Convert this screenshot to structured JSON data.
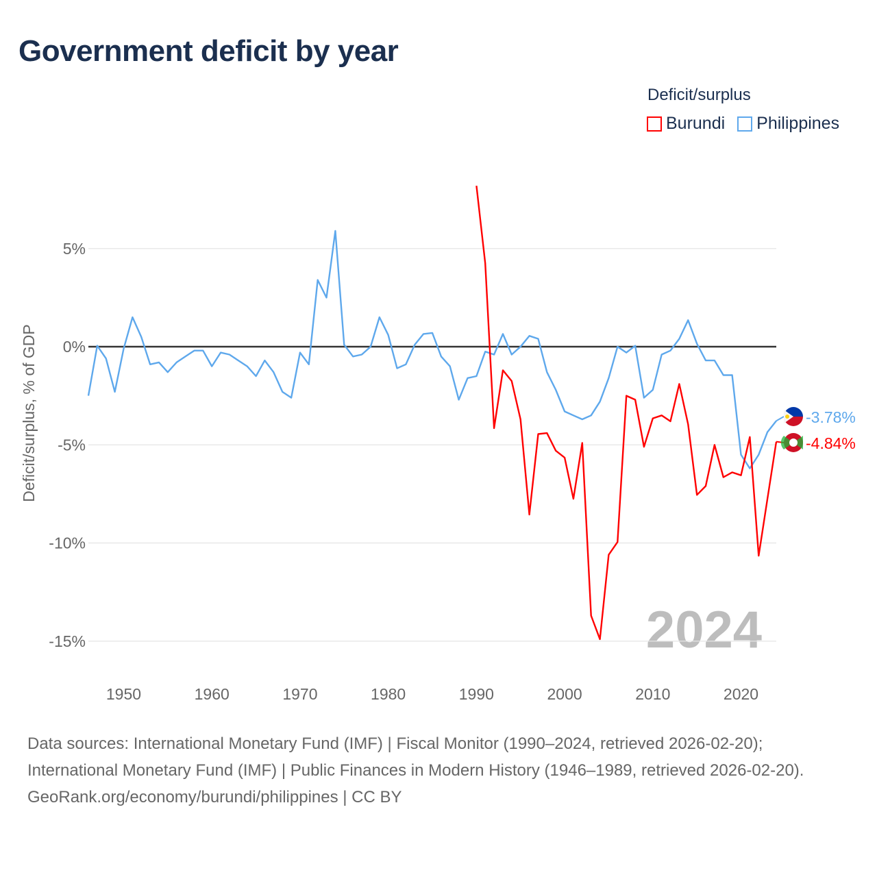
{
  "title": "Government deficit by year",
  "legend": {
    "title": "Deficit/surplus",
    "items": [
      {
        "label": "Burundi",
        "color": "#ff0000"
      },
      {
        "label": "Philippines",
        "color": "#5ea8ec"
      }
    ]
  },
  "footer": {
    "sources": "Data sources: International Monetary Fund (IMF) | Fiscal Monitor (1990–2024, retrieved 2026-02-20); International Monetary Fund (IMF) | Public Finances in Modern History (1946–1989, retrieved 2026-02-20).",
    "credit": "GeoRank.org/economy/burundi/philippines | CC BY"
  },
  "chart_data": {
    "type": "line",
    "title": "Government deficit by year",
    "ylabel": "Deficit/surplus, % of GDP",
    "xlabel": "",
    "xlim": [
      1946,
      2024
    ],
    "ylim": [
      -16.5,
      8.5
    ],
    "x_ticks": [
      1950,
      1960,
      1970,
      1980,
      1990,
      2000,
      2010,
      2020
    ],
    "y_ticks": [
      {
        "value": 5,
        "label": "5%"
      },
      {
        "value": 0,
        "label": "0%"
      },
      {
        "value": -5,
        "label": "-5%"
      },
      {
        "value": -10,
        "label": "-10%"
      },
      {
        "value": -15,
        "label": "-15%"
      }
    ],
    "year_watermark": "2024",
    "series": [
      {
        "name": "Philippines",
        "color": "#5ea8ec",
        "start_year": 1946,
        "end_label": "-3.78%",
        "values": [
          -2.5,
          0.05,
          -0.6,
          -2.3,
          -0.1,
          1.5,
          0.5,
          -0.9,
          -0.8,
          -1.3,
          -0.8,
          -0.5,
          -0.2,
          -0.2,
          -1.0,
          -0.3,
          -0.4,
          -0.7,
          -1.0,
          -1.5,
          -0.7,
          -1.3,
          -2.3,
          -2.6,
          -0.3,
          -0.9,
          3.4,
          2.5,
          5.9,
          0.1,
          -0.5,
          -0.4,
          0.0,
          1.5,
          0.6,
          -1.1,
          -0.9,
          0.1,
          0.65,
          0.7,
          -0.5,
          -1.0,
          -2.7,
          -1.6,
          -1.5,
          -0.25,
          -0.4,
          0.65,
          -0.4,
          0.0,
          0.55,
          0.4,
          -1.3,
          -2.2,
          -3.3,
          -3.5,
          -3.7,
          -3.5,
          -2.8,
          -1.6,
          0.0,
          -0.3,
          0.05,
          -2.6,
          -2.2,
          -0.4,
          -0.2,
          0.4,
          1.35,
          0.15,
          -0.7,
          -0.7,
          -1.45,
          -1.45,
          -5.5,
          -6.2,
          -5.5,
          -4.35,
          -3.78
        ]
      },
      {
        "name": "Burundi",
        "color": "#ff0000",
        "start_year": 1990,
        "end_label": "-4.84%",
        "values": [
          8.2,
          4.25,
          -4.15,
          -1.2,
          -1.75,
          -3.7,
          -8.55,
          -4.45,
          -4.4,
          -5.3,
          -5.65,
          -7.75,
          -4.9,
          -13.7,
          -14.9,
          -10.6,
          -9.95,
          -2.5,
          -2.7,
          -5.1,
          -3.65,
          -3.5,
          -3.8,
          -1.9,
          -3.95,
          -7.55,
          -7.1,
          -5.0,
          -6.65,
          -6.4,
          -6.55,
          -4.6,
          -10.65,
          -7.75,
          -4.84
        ]
      }
    ]
  }
}
